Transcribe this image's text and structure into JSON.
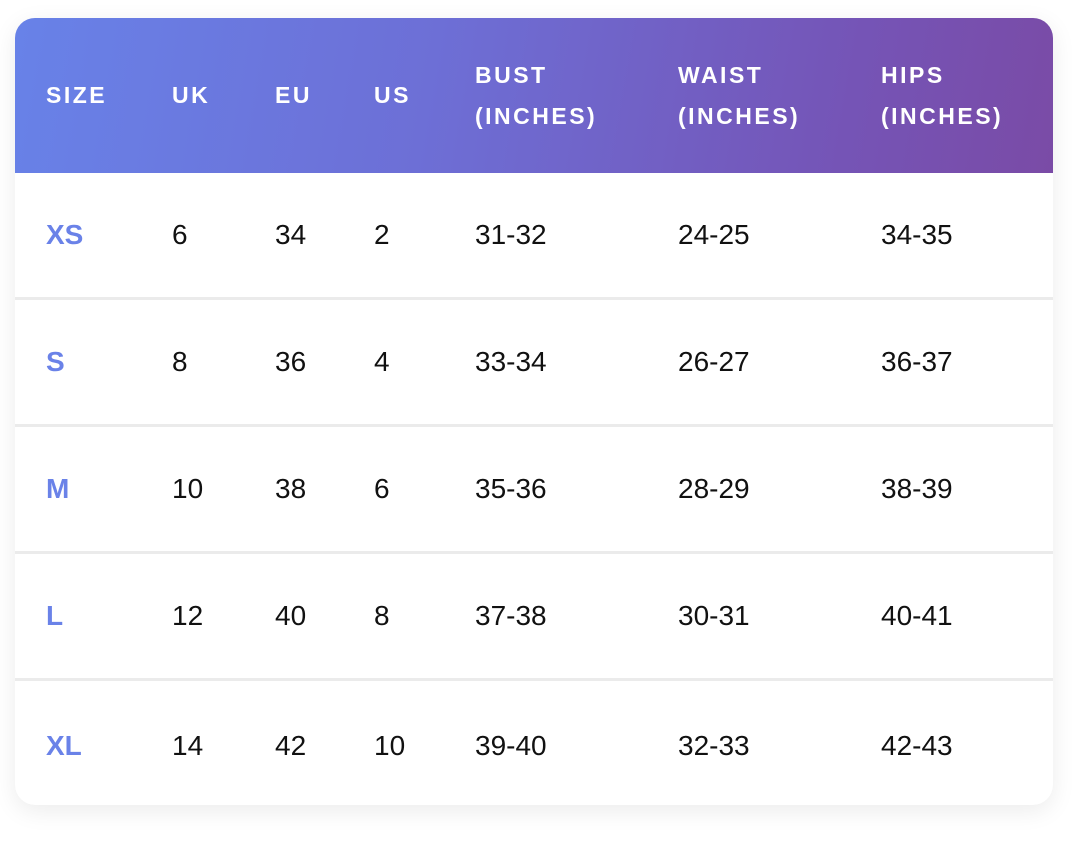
{
  "table": {
    "columns": [
      "SIZE",
      "UK",
      "EU",
      "US",
      "BUST (INCHES)",
      "WAIST (INCHES)",
      "HIPS (INCHES)"
    ],
    "rows": [
      [
        "XS",
        "6",
        "34",
        "2",
        "31-32",
        "24-25",
        "34-35"
      ],
      [
        "S",
        "8",
        "36",
        "4",
        "33-34",
        "26-27",
        "36-37"
      ],
      [
        "M",
        "10",
        "38",
        "6",
        "35-36",
        "28-29",
        "38-39"
      ],
      [
        "L",
        "12",
        "40",
        "8",
        "37-38",
        "30-31",
        "40-41"
      ],
      [
        "XL",
        "14",
        "42",
        "10",
        "39-40",
        "32-33",
        "42-43"
      ]
    ]
  }
}
